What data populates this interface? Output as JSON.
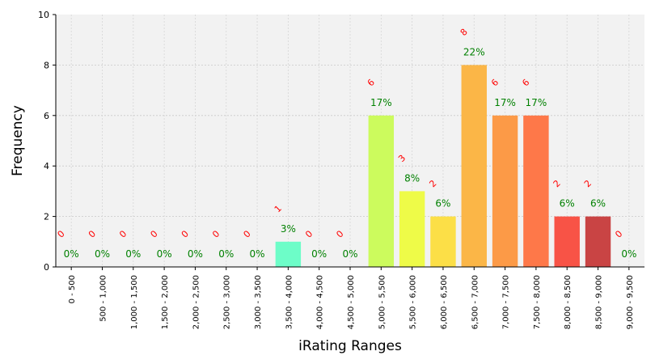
{
  "chart_data": {
    "type": "bar",
    "xlabel": "iRating Ranges",
    "ylabel": "Frequency",
    "ylim": [
      0,
      10
    ],
    "yticks": [
      "0",
      "2",
      "4",
      "6",
      "8",
      "10"
    ],
    "grid": true,
    "categories": [
      "0 - 500",
      "500 - 1,000",
      "1,000 - 1,500",
      "1,500 - 2,000",
      "2,000 - 2,500",
      "2,500 - 3,000",
      "3,000 - 3,500",
      "3,500 - 4,000",
      "4,000 - 4,500",
      "4,500 - 5,000",
      "5,000 - 5,500",
      "5,500 - 6,000",
      "6,000 - 6,500",
      "6,500 - 7,000",
      "7,000 - 7,500",
      "7,500 - 8,000",
      "8,000 - 8,500",
      "8,500 - 9,000",
      "9,000 - 9,500"
    ],
    "values": [
      0,
      0,
      0,
      0,
      0,
      0,
      0,
      1,
      0,
      0,
      6,
      3,
      2,
      8,
      6,
      6,
      2,
      2,
      0
    ],
    "count_labels": [
      "0",
      "0",
      "0",
      "0",
      "0",
      "0",
      "0",
      "1",
      "0",
      "0",
      "6",
      "3",
      "2",
      "8",
      "6",
      "6",
      "2",
      "2",
      "0"
    ],
    "percent_labels": [
      "0%",
      "0%",
      "0%",
      "0%",
      "0%",
      "0%",
      "0%",
      "3%",
      "0%",
      "0%",
      "17%",
      "8%",
      "6%",
      "22%",
      "17%",
      "17%",
      "6%",
      "6%",
      "0%"
    ],
    "colors": [
      "#7ff5e0",
      "#7ff5e0",
      "#7ff5e0",
      "#7ff5e0",
      "#7ff5e0",
      "#7ff5e0",
      "#7ff5e0",
      "#6dfdc8",
      "#7ff5e0",
      "#7ff5e0",
      "#ccfb5d",
      "#eefb48",
      "#fcdf47",
      "#fbb647",
      "#fc9a47",
      "#fe7849",
      "#f85346",
      "#c94444",
      "#c94444"
    ],
    "plot_background": "#f2f2f2"
  }
}
